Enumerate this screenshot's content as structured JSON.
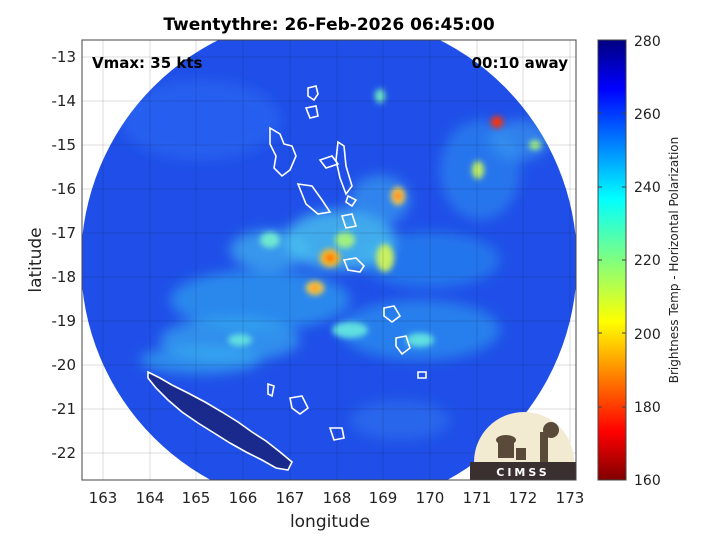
{
  "title": "Twentythre: 26-Feb-2026 06:45:00",
  "annotations": {
    "vmax": "Vmax: 35 kts",
    "time_away": "00:10 away"
  },
  "logo_text": "CIMSS",
  "axes": {
    "xlabel": "longitude",
    "ylabel": "latitude",
    "xlim": [
      162.6,
      173.1
    ],
    "ylim": [
      -22.6,
      -12.7
    ],
    "xticks": [
      "163",
      "164",
      "165",
      "166",
      "167",
      "168",
      "169",
      "170",
      "171",
      "172",
      "173"
    ],
    "yticks": [
      "-13",
      "-14",
      "-15",
      "-16",
      "-17",
      "-18",
      "-19",
      "-20",
      "-21",
      "-22"
    ],
    "grid": true
  },
  "colorbar": {
    "label": "Brightness Temp - Horizontal Polarization",
    "min": 160,
    "max": 280,
    "ticks": [
      "280",
      "260",
      "240",
      "220",
      "200",
      "180",
      "160"
    ],
    "colormap": "jet"
  },
  "colors": {
    "background_field": "#1f4fe8",
    "land_fill": "#1a2a8c",
    "coastline": "#ffffff"
  }
}
